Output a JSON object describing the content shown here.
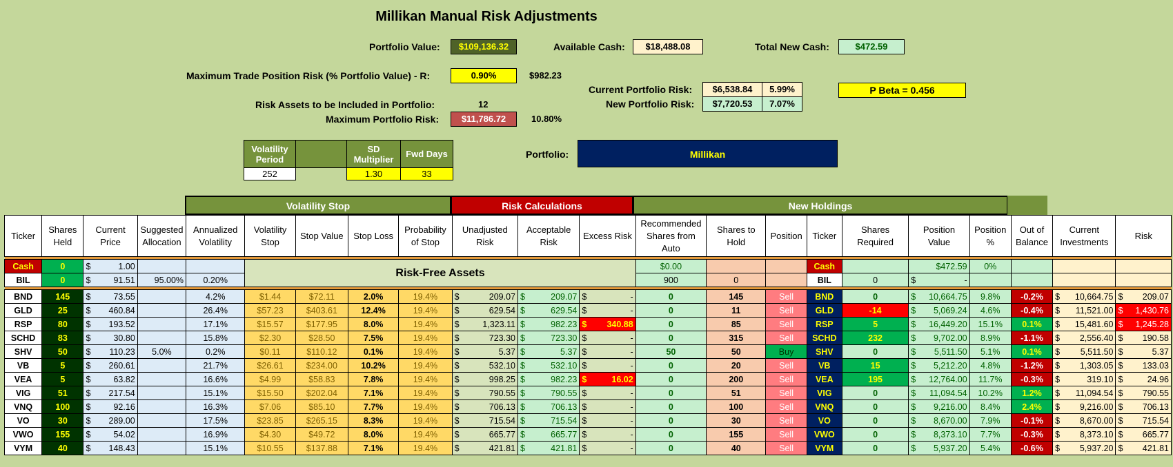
{
  "title": "Millikan Manual Risk Adjustments",
  "summary": {
    "portfolio_value_label": "Portfolio Value:",
    "portfolio_value": "$109,136.32",
    "available_cash_label": "Available Cash:",
    "available_cash": "$18,488.08",
    "total_new_cash_label": "Total New Cash:",
    "total_new_cash": "$472.59",
    "max_trade_label": "Maximum Trade Position Risk (% Portfolio Value) - R:",
    "max_trade_pct": "0.90%",
    "max_trade_value": "$982.23",
    "risk_assets_label": "Risk Assets to be Included in Portfolio:",
    "risk_assets_count": "12",
    "max_portfolio_risk_label": "Maximum Portfolio Risk:",
    "max_portfolio_risk": "$11,786.72",
    "max_portfolio_risk_pct": "10.80%",
    "current_risk_label": "Current Portfolio Risk:",
    "current_risk": "$6,538.84",
    "current_risk_pct": "5.99%",
    "new_risk_label": "New Portfolio Risk:",
    "new_risk": "$7,720.53",
    "new_risk_pct": "7.07%",
    "pbeta": "P Beta = 0.456",
    "portfolio_label": "Portfolio:",
    "portfolio_name": "Millikan"
  },
  "params": {
    "vol_period_label": "Volatility Period",
    "sd_mult_label": "SD Multiplier",
    "fwd_days_label": "Fwd Days",
    "vol_period": "252",
    "sd_mult": "1.30",
    "fwd_days": "33"
  },
  "sections": {
    "vol_stop": "Volatility Stop",
    "risk_calc": "Risk Calculations",
    "new_holdings": "New Holdings"
  },
  "headers": [
    "Ticker",
    "Shares Held",
    "Current Price",
    "Suggested Allocation",
    "Annualized Volatility",
    "Volatility Stop",
    "Stop Value",
    "Stop Loss",
    "Probability of Stop",
    "Unadjusted Risk",
    "Acceptable Risk",
    "Excess Risk",
    "Recommended Shares from Auto",
    "Shares to Hold",
    "Position",
    "Ticker",
    "Shares Required",
    "Position Value",
    "Position %",
    "Out of Balance",
    "Current Investments",
    "Risk"
  ],
  "risk_free_label": "Risk-Free Assets",
  "cash_row": {
    "ticker": "Cash",
    "shares": "0",
    "price": "1.00",
    "rec": "$0.00",
    "ticker2": "Cash",
    "pos_value": "$472.59",
    "pos_pct": "0%"
  },
  "bil_row": {
    "ticker": "BIL",
    "shares": "0",
    "price": "91.51",
    "alloc": "95.00%",
    "vol": "0.20%",
    "rec": "900",
    "hold": "0",
    "ticker2": "BIL",
    "req": "0",
    "pos_value": "-"
  },
  "rows": [
    {
      "t": "BND",
      "sh": "145",
      "p": "73.55",
      "al": "",
      "av": "4.2%",
      "vs": "$1.44",
      "sv": "$72.11",
      "sl": "2.0%",
      "ps": "19.4%",
      "ur": "209.07",
      "ar": "209.07",
      "er": "-",
      "rec": "0",
      "hold": "145",
      "pos": "Sell",
      "req": "0",
      "pv": "10,664.75",
      "pp": "9.8%",
      "ob": "-0.2%",
      "ci": "10,664.75",
      "rk": "209.07",
      "erRed": false,
      "reqColor": "",
      "obColor": "red",
      "rkRed": false
    },
    {
      "t": "GLD",
      "sh": "25",
      "p": "460.84",
      "al": "",
      "av": "26.4%",
      "vs": "$57.23",
      "sv": "$403.61",
      "sl": "12.4%",
      "ps": "19.4%",
      "ur": "629.54",
      "ar": "629.54",
      "er": "-",
      "rec": "0",
      "hold": "11",
      "pos": "Sell",
      "req": "-14",
      "pv": "5,069.24",
      "pp": "4.6%",
      "ob": "-0.4%",
      "ci": "11,521.00",
      "rk": "1,430.76",
      "erRed": false,
      "reqColor": "red",
      "obColor": "red",
      "rkRed": true
    },
    {
      "t": "RSP",
      "sh": "80",
      "p": "193.52",
      "al": "",
      "av": "17.1%",
      "vs": "$15.57",
      "sv": "$177.95",
      "sl": "8.0%",
      "ps": "19.4%",
      "ur": "1,323.11",
      "ar": "982.23",
      "er": "340.88",
      "rec": "0",
      "hold": "85",
      "pos": "Sell",
      "req": "5",
      "pv": "16,449.20",
      "pp": "15.1%",
      "ob": "0.1%",
      "ci": "15,481.60",
      "rk": "1,245.28",
      "erRed": true,
      "reqColor": "green",
      "obColor": "green",
      "rkRed": true
    },
    {
      "t": "SCHD",
      "sh": "83",
      "p": "30.80",
      "al": "",
      "av": "15.8%",
      "vs": "$2.30",
      "sv": "$28.50",
      "sl": "7.5%",
      "ps": "19.4%",
      "ur": "723.30",
      "ar": "723.30",
      "er": "-",
      "rec": "0",
      "hold": "315",
      "pos": "Sell",
      "req": "232",
      "pv": "9,702.00",
      "pp": "8.9%",
      "ob": "-1.1%",
      "ci": "2,556.40",
      "rk": "190.58",
      "erRed": false,
      "reqColor": "green",
      "obColor": "red",
      "rkRed": false
    },
    {
      "t": "SHV",
      "sh": "50",
      "p": "110.23",
      "al": "5.0%",
      "av": "0.2%",
      "vs": "$0.11",
      "sv": "$110.12",
      "sl": "0.1%",
      "ps": "19.4%",
      "ur": "5.37",
      "ar": "5.37",
      "er": "-",
      "rec": "50",
      "hold": "50",
      "pos": "Buy",
      "req": "0",
      "pv": "5,511.50",
      "pp": "5.1%",
      "ob": "0.1%",
      "ci": "5,511.50",
      "rk": "5.37",
      "erRed": false,
      "reqColor": "",
      "obColor": "green",
      "rkRed": false
    },
    {
      "t": "VB",
      "sh": "5",
      "p": "260.61",
      "al": "",
      "av": "21.7%",
      "vs": "$26.61",
      "sv": "$234.00",
      "sl": "10.2%",
      "ps": "19.4%",
      "ur": "532.10",
      "ar": "532.10",
      "er": "-",
      "rec": "0",
      "hold": "20",
      "pos": "Sell",
      "req": "15",
      "pv": "5,212.20",
      "pp": "4.8%",
      "ob": "-1.2%",
      "ci": "1,303.05",
      "rk": "133.03",
      "erRed": false,
      "reqColor": "green",
      "obColor": "red",
      "rkRed": false
    },
    {
      "t": "VEA",
      "sh": "5",
      "p": "63.82",
      "al": "",
      "av": "16.6%",
      "vs": "$4.99",
      "sv": "$58.83",
      "sl": "7.8%",
      "ps": "19.4%",
      "ur": "998.25",
      "ar": "982.23",
      "er": "16.02",
      "rec": "0",
      "hold": "200",
      "pos": "Sell",
      "req": "195",
      "pv": "12,764.00",
      "pp": "11.7%",
      "ob": "-0.3%",
      "ci": "319.10",
      "rk": "24.96",
      "erRed": true,
      "reqColor": "green",
      "obColor": "red",
      "rkRed": false
    },
    {
      "t": "VIG",
      "sh": "51",
      "p": "217.54",
      "al": "",
      "av": "15.1%",
      "vs": "$15.50",
      "sv": "$202.04",
      "sl": "7.1%",
      "ps": "19.4%",
      "ur": "790.55",
      "ar": "790.55",
      "er": "-",
      "rec": "0",
      "hold": "51",
      "pos": "Sell",
      "req": "0",
      "pv": "11,094.54",
      "pp": "10.2%",
      "ob": "1.2%",
      "ci": "11,094.54",
      "rk": "790.55",
      "erRed": false,
      "reqColor": "",
      "obColor": "green",
      "rkRed": false
    },
    {
      "t": "VNQ",
      "sh": "100",
      "p": "92.16",
      "al": "",
      "av": "16.3%",
      "vs": "$7.06",
      "sv": "$85.10",
      "sl": "7.7%",
      "ps": "19.4%",
      "ur": "706.13",
      "ar": "706.13",
      "er": "-",
      "rec": "0",
      "hold": "100",
      "pos": "Sell",
      "req": "0",
      "pv": "9,216.00",
      "pp": "8.4%",
      "ob": "2.4%",
      "ci": "9,216.00",
      "rk": "706.13",
      "erRed": false,
      "reqColor": "",
      "obColor": "green",
      "rkRed": false
    },
    {
      "t": "VO",
      "sh": "30",
      "p": "289.00",
      "al": "",
      "av": "17.5%",
      "vs": "$23.85",
      "sv": "$265.15",
      "sl": "8.3%",
      "ps": "19.4%",
      "ur": "715.54",
      "ar": "715.54",
      "er": "-",
      "rec": "0",
      "hold": "30",
      "pos": "Sell",
      "req": "0",
      "pv": "8,670.00",
      "pp": "7.9%",
      "ob": "-0.1%",
      "ci": "8,670.00",
      "rk": "715.54",
      "erRed": false,
      "reqColor": "",
      "obColor": "red",
      "rkRed": false
    },
    {
      "t": "VWO",
      "sh": "155",
      "p": "54.02",
      "al": "",
      "av": "16.9%",
      "vs": "$4.30",
      "sv": "$49.72",
      "sl": "8.0%",
      "ps": "19.4%",
      "ur": "665.77",
      "ar": "665.77",
      "er": "-",
      "rec": "0",
      "hold": "155",
      "pos": "Sell",
      "req": "0",
      "pv": "8,373.10",
      "pp": "7.7%",
      "ob": "-0.3%",
      "ci": "8,373.10",
      "rk": "665.77",
      "erRed": false,
      "reqColor": "",
      "obColor": "red",
      "rkRed": false
    },
    {
      "t": "VYM",
      "sh": "40",
      "p": "148.43",
      "al": "",
      "av": "15.1%",
      "vs": "$10.55",
      "sv": "$137.88",
      "sl": "7.1%",
      "ps": "19.4%",
      "ur": "421.81",
      "ar": "421.81",
      "er": "-",
      "rec": "0",
      "hold": "40",
      "pos": "Sell",
      "req": "0",
      "pv": "5,937.20",
      "pp": "5.4%",
      "ob": "-0.6%",
      "ci": "5,937.20",
      "rk": "421.81",
      "erRed": false,
      "reqColor": "",
      "obColor": "red",
      "rkRed": false
    }
  ]
}
